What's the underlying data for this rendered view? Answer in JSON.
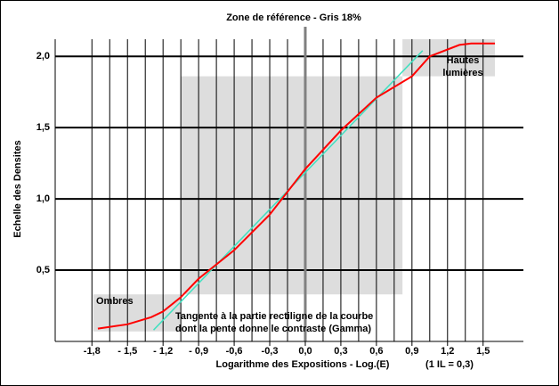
{
  "chart_data": {
    "type": "line",
    "title": "Zone de référence - Gris 18%",
    "x_label": "Logarithme des Expositions - Log.(E)",
    "x_note": "(1 IL = 0,3)",
    "y_label": "Echelle des Densites",
    "xlim": [
      -2.11,
      1.84
    ],
    "ylim": [
      0,
      2.12
    ],
    "xticks": [
      {
        "value": -1.8,
        "label": "-1,8"
      },
      {
        "value": -1.5,
        "label": "- 1,5"
      },
      {
        "value": -1.2,
        "label": "- 1,2"
      },
      {
        "value": -0.9,
        "label": "- 0,9"
      },
      {
        "value": -0.6,
        "label": "-0,6"
      },
      {
        "value": -0.3,
        "label": "-0,3"
      },
      {
        "value": 0,
        "label": "0,0"
      },
      {
        "value": 0.3,
        "label": "0,3"
      },
      {
        "value": 0.6,
        "label": "0,6"
      },
      {
        "value": 0.9,
        "label": "0,9"
      },
      {
        "value": 1.2,
        "label": "1,2"
      },
      {
        "value": 1.5,
        "label": "1,5"
      }
    ],
    "x_minor_ticks": [
      -1.65,
      -1.35,
      -1.05,
      -0.75,
      -0.45,
      -0.15,
      0.15,
      0.45,
      0.75,
      1.05,
      1.35
    ],
    "yticks": [
      {
        "value": 0.5,
        "label": "0,5"
      },
      {
        "value": 1,
        "label": "1,0"
      },
      {
        "value": 1.5,
        "label": "1,5"
      },
      {
        "value": 2,
        "label": "2,0"
      }
    ],
    "reference_x": 0,
    "zones": [
      {
        "x": [
          -1.05,
          0.82
        ],
        "y": [
          0.33,
          1.86
        ]
      },
      {
        "x": [
          0.82,
          1.6
        ],
        "y": [
          1.86,
          2.12
        ]
      },
      {
        "x": [
          -1.79,
          -1.05
        ],
        "y": [
          0.07,
          0.33
        ]
      }
    ],
    "zone_color": "#dddddd",
    "series": [
      {
        "color": "#ff0000",
        "x": [
          -1.75,
          -1.5,
          -1.3,
          -1.2,
          -1.05,
          -0.9,
          -0.6,
          -0.3,
          0,
          0.3,
          0.6,
          0.9,
          1.05,
          1.3,
          1.4,
          1.6
        ],
        "values": [
          0.09,
          0.12,
          0.17,
          0.21,
          0.31,
          0.44,
          0.64,
          0.89,
          1.21,
          1.48,
          1.71,
          1.86,
          2.0,
          2.08,
          2.09,
          2.09
        ]
      },
      {
        "color": "#40e0c0",
        "x": [
          -1.28,
          0.99
        ],
        "values": [
          0.08,
          2.04
        ]
      }
    ],
    "annotations": [
      {
        "lines": [
          "Ombres"
        ]
      },
      {
        "lines": [
          "Hautes",
          "lumières"
        ]
      },
      {
        "lines": [
          "Tangente à la partie rectiligne de la courbe",
          "dont la pente donne le contraste (Gamma)"
        ]
      }
    ]
  }
}
